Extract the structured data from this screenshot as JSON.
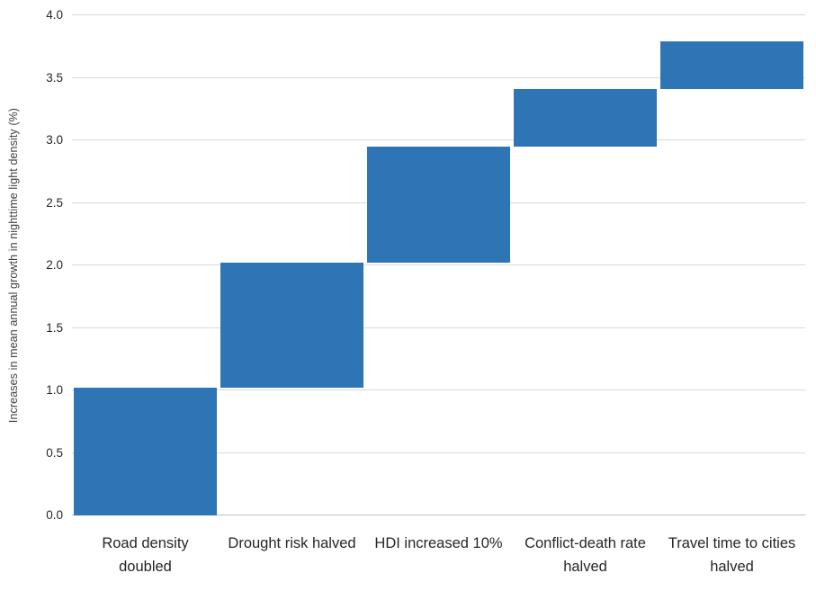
{
  "chart_data": {
    "type": "bar",
    "subtype": "waterfall-floating-bars",
    "title": "",
    "xlabel": "",
    "ylabel": "Increases in mean annual growth in nighttime light density (%)",
    "ylim": [
      0,
      4.0
    ],
    "ytick_step": 0.5,
    "yticks": [
      "0.0",
      "0.5",
      "1.0",
      "1.5",
      "2.0",
      "2.5",
      "3.0",
      "3.5",
      "4.0"
    ],
    "grid": true,
    "legend": false,
    "categories": [
      "Road density doubled",
      "Drought risk halved",
      "HDI increased 10%",
      "Conflict-death rate halved",
      "Travel time to cities halved"
    ],
    "bars": [
      {
        "category": "Road density doubled",
        "start": 0.0,
        "end": 1.02,
        "delta": 1.02
      },
      {
        "category": "Drought risk halved",
        "start": 1.02,
        "end": 2.02,
        "delta": 1.0
      },
      {
        "category": "HDI increased 10%",
        "start": 2.02,
        "end": 2.95,
        "delta": 0.93
      },
      {
        "category": "Conflict-death rate halved",
        "start": 2.95,
        "end": 3.41,
        "delta": 0.46
      },
      {
        "category": "Travel time to cities halved",
        "start": 3.41,
        "end": 3.79,
        "delta": 0.38
      }
    ],
    "colors": {
      "bar": "#2e75b6",
      "gridline": "#d9d9d9",
      "axis_line": "#bfbfbf",
      "tick_text": "#262626",
      "axis_title_text": "#404040",
      "background": "#ffffff"
    }
  }
}
